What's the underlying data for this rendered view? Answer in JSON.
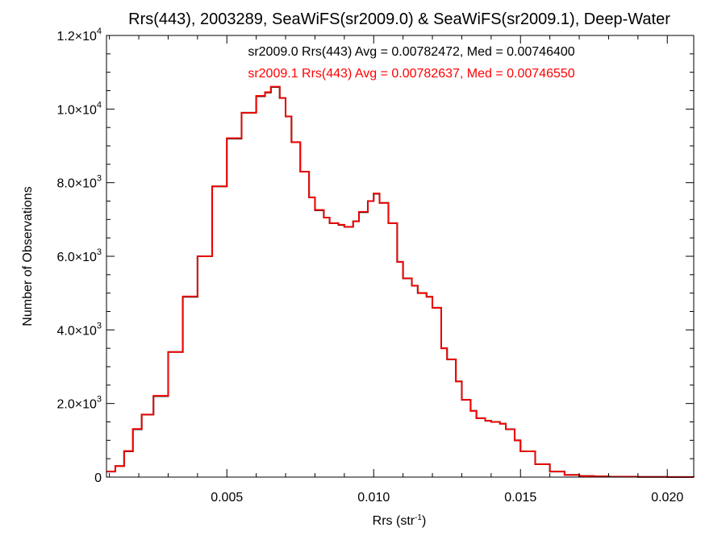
{
  "chart_data": {
    "type": "line",
    "title": "Rrs(443), 2003289, SeaWiFS(sr2009.0) & SeaWiFS(sr2009.1), Deep-Water",
    "xlabel_main": "Rrs (str",
    "xlabel_sup": "-1",
    "xlabel_close": ")",
    "ylabel": "Number of Observations",
    "xlim": [
      0.0009,
      0.0209
    ],
    "ylim": [
      0,
      12000
    ],
    "grid": false,
    "legend_position": "top-center",
    "x_ticks": [
      {
        "value": 0.005,
        "label": "0.005"
      },
      {
        "value": 0.01,
        "label": "0.010"
      },
      {
        "value": 0.015,
        "label": "0.015"
      },
      {
        "value": 0.02,
        "label": "0.020"
      }
    ],
    "y_ticks": [
      {
        "value": 0,
        "base": "0",
        "exp": ""
      },
      {
        "value": 2000,
        "base": "2.0×10",
        "exp": "3"
      },
      {
        "value": 4000,
        "base": "4.0×10",
        "exp": "3"
      },
      {
        "value": 6000,
        "base": "6.0×10",
        "exp": "3"
      },
      {
        "value": 8000,
        "base": "8.0×10",
        "exp": "3"
      },
      {
        "value": 10000,
        "base": "1.0×10",
        "exp": "4"
      },
      {
        "value": 12000,
        "base": "1.2×10",
        "exp": "4"
      }
    ],
    "annotations": [
      {
        "text": "sr2009.0 Rrs(443) Avg = 0.00782472, Med = 0.00746400",
        "color": "#000000"
      },
      {
        "text": "sr2009.1 Rrs(443) Avg = 0.00782637, Med = 0.00746550",
        "color": "#ff0000"
      }
    ],
    "series": [
      {
        "color": "#000000",
        "x": [
          0.0009,
          0.0012,
          0.0015,
          0.0018,
          0.0021,
          0.0025,
          0.003,
          0.0035,
          0.004,
          0.0045,
          0.005,
          0.0055,
          0.006,
          0.0063,
          0.0065,
          0.0068,
          0.007,
          0.0072,
          0.0075,
          0.0078,
          0.008,
          0.0083,
          0.0085,
          0.0088,
          0.009,
          0.0093,
          0.0095,
          0.0098,
          0.01,
          0.0102,
          0.0105,
          0.0108,
          0.011,
          0.0113,
          0.0115,
          0.0118,
          0.012,
          0.0123,
          0.0125,
          0.0128,
          0.013,
          0.0133,
          0.0135,
          0.0138,
          0.014,
          0.0143,
          0.0145,
          0.0148,
          0.015,
          0.0155,
          0.016,
          0.0165,
          0.017,
          0.0175,
          0.018,
          0.019,
          0.02,
          0.0209
        ],
        "y": [
          150,
          300,
          700,
          1300,
          1700,
          2200,
          3400,
          4900,
          6000,
          7900,
          9200,
          9900,
          10350,
          10450,
          10600,
          10300,
          9800,
          9100,
          8300,
          7600,
          7250,
          7050,
          6900,
          6850,
          6800,
          6950,
          7200,
          7500,
          7700,
          7450,
          6900,
          5850,
          5400,
          5200,
          5000,
          4900,
          4600,
          3500,
          3200,
          2600,
          2100,
          1800,
          1600,
          1530,
          1500,
          1450,
          1300,
          1000,
          700,
          350,
          150,
          60,
          30,
          20,
          10,
          5,
          3,
          0
        ]
      },
      {
        "color": "#ff0000",
        "x": [
          0.0009,
          0.0012,
          0.0015,
          0.0018,
          0.0021,
          0.0025,
          0.003,
          0.0035,
          0.004,
          0.0045,
          0.005,
          0.0055,
          0.006,
          0.0063,
          0.0065,
          0.0068,
          0.007,
          0.0072,
          0.0075,
          0.0078,
          0.008,
          0.0083,
          0.0085,
          0.0088,
          0.009,
          0.0093,
          0.0095,
          0.0098,
          0.01,
          0.0102,
          0.0105,
          0.0108,
          0.011,
          0.0113,
          0.0115,
          0.0118,
          0.012,
          0.0123,
          0.0125,
          0.0128,
          0.013,
          0.0133,
          0.0135,
          0.0138,
          0.014,
          0.0143,
          0.0145,
          0.0148,
          0.015,
          0.0155,
          0.016,
          0.0165,
          0.017,
          0.0175,
          0.018,
          0.019,
          0.02,
          0.0209
        ],
        "y": [
          150,
          300,
          710,
          1310,
          1700,
          2210,
          3400,
          4910,
          6000,
          7900,
          9210,
          9900,
          10360,
          10460,
          10610,
          10300,
          9800,
          9100,
          8300,
          7600,
          7260,
          7050,
          6900,
          6860,
          6800,
          6950,
          7210,
          7500,
          7710,
          7450,
          6900,
          5850,
          5400,
          5200,
          5000,
          4900,
          4600,
          3500,
          3200,
          2600,
          2100,
          1800,
          1600,
          1530,
          1500,
          1450,
          1300,
          1000,
          700,
          350,
          150,
          60,
          30,
          20,
          10,
          5,
          3,
          0
        ]
      }
    ]
  }
}
